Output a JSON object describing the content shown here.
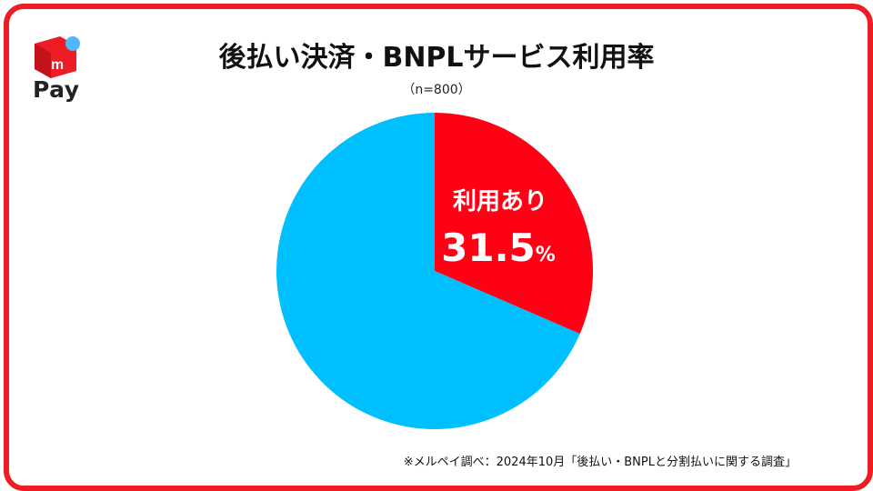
{
  "brand": {
    "logo_mark": "m",
    "logo_text": "Pay",
    "brand_color": "#ee1c25",
    "dot_color": "#4db8ff"
  },
  "header": {
    "title": "後払い決済・BNPLサービス利用率",
    "sample": "（n=800）"
  },
  "chart_data": {
    "type": "pie",
    "slices": [
      {
        "label": "利用あり",
        "value": 31.5,
        "unit": "%",
        "color": "#ff0015"
      },
      {
        "label": "",
        "value": 68.5,
        "color": "#00bfff"
      }
    ],
    "start_angle_deg": 0,
    "direction": "clockwise",
    "legend": "none"
  },
  "footer": {
    "source": "※メルペイ調べ：2024年10月「後払い・BNPLと分割払いに関する調査」"
  }
}
